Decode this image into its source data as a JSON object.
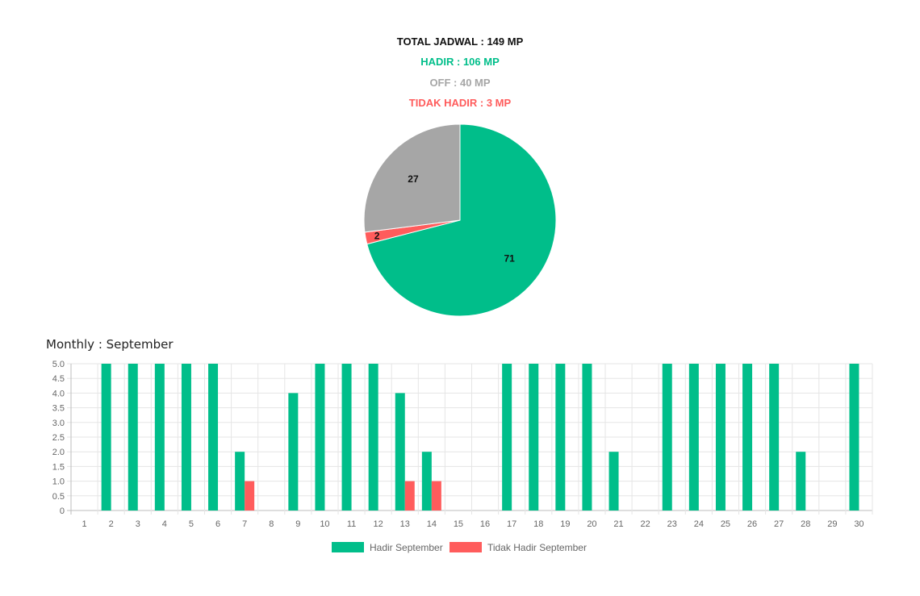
{
  "summary": {
    "total": "TOTAL JADWAL : 149 MP",
    "hadir": "HADIR : 106 MP",
    "off": "OFF : 40 MP",
    "tidak_hadir": "TIDAK HADIR : 3 MP"
  },
  "monthly_title": "Monthly : September",
  "colors": {
    "hadir": "#00be8a",
    "off": "#a6a6a6",
    "tidak_hadir": "#ff5c5c",
    "grid": "#e5e5e5"
  },
  "chart_data": [
    {
      "type": "pie",
      "slices": [
        {
          "value": 71,
          "label": "71",
          "color": "#00be8a"
        },
        {
          "value": 2,
          "label": "2",
          "color": "#ff5c5c"
        },
        {
          "value": 27,
          "label": "27",
          "color": "#a6a6a6"
        }
      ]
    },
    {
      "type": "bar",
      "categories": [
        "1",
        "2",
        "3",
        "4",
        "5",
        "6",
        "7",
        "8",
        "9",
        "10",
        "11",
        "12",
        "13",
        "14",
        "15",
        "16",
        "17",
        "18",
        "19",
        "20",
        "21",
        "22",
        "23",
        "24",
        "25",
        "26",
        "27",
        "28",
        "29",
        "30"
      ],
      "series": [
        {
          "name": "Hadir September",
          "color": "#00be8a",
          "values": [
            0,
            5,
            5,
            5,
            5,
            5,
            2,
            0,
            4,
            5,
            5,
            5,
            4,
            2,
            0,
            0,
            5,
            5,
            5,
            5,
            2,
            0,
            5,
            5,
            5,
            5,
            5,
            2,
            0,
            5
          ]
        },
        {
          "name": "Tidak Hadir September",
          "color": "#ff5c5c",
          "values": [
            0,
            0,
            0,
            0,
            0,
            0,
            1,
            0,
            0,
            0,
            0,
            0,
            1,
            1,
            0,
            0,
            0,
            0,
            0,
            0,
            0,
            0,
            0,
            0,
            0,
            0,
            0,
            0,
            0,
            0
          ]
        }
      ],
      "ylim": [
        0,
        5
      ],
      "yticks": [
        "0",
        "0.5",
        "1.0",
        "1.5",
        "2.0",
        "2.5",
        "3.0",
        "3.5",
        "4.0",
        "4.5",
        "5.0"
      ],
      "grid": true,
      "legend": "bottom"
    }
  ]
}
